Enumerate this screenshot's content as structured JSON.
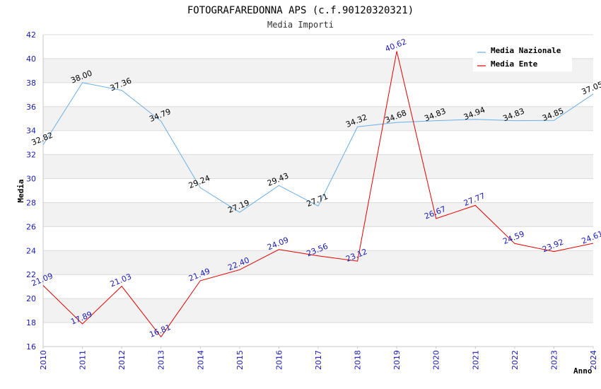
{
  "chart_data": {
    "type": "line",
    "title": "FOTOGRAFAREDONNA APS (c.f.90120320321)",
    "subtitle": "Media Importi",
    "xlabel": "Anno",
    "ylabel": "Media",
    "ylim": [
      16,
      42
    ],
    "yticks": [
      "16",
      "18",
      "20",
      "22",
      "24",
      "26",
      "28",
      "30",
      "32",
      "34",
      "36",
      "38",
      "40",
      "42"
    ],
    "categories": [
      "2010",
      "2011",
      "2012",
      "2013",
      "2014",
      "2015",
      "2016",
      "2017",
      "2018",
      "2019",
      "2020",
      "2021",
      "2022",
      "2023",
      "2024"
    ],
    "legend_position": "top-right",
    "series": [
      {
        "name": "Media Nazionale",
        "color": "#6aaee8",
        "label_color": "#000000",
        "values": [
          32.82,
          38.0,
          37.36,
          34.79,
          29.24,
          27.19,
          29.43,
          27.71,
          34.32,
          34.68,
          34.83,
          34.94,
          34.83,
          34.85,
          37.05
        ],
        "labels": [
          "32.82",
          "38.00",
          "37.36",
          "34.79",
          "29.24",
          "27.19",
          "29.43",
          "27.71",
          "34.32",
          "34.68",
          "34.83",
          "34.94",
          "34.83",
          "34.85",
          "37.05"
        ]
      },
      {
        "name": "Media Ente",
        "color": "#e00000",
        "label_color": "#1a1ab0",
        "values": [
          21.09,
          17.89,
          21.03,
          16.81,
          21.49,
          22.4,
          24.09,
          23.56,
          23.12,
          40.62,
          26.67,
          27.77,
          24.59,
          23.92,
          24.61
        ],
        "labels": [
          "21.09",
          "17.89",
          "21.03",
          "16.81",
          "21.49",
          "22.40",
          "24.09",
          "23.56",
          "23.12",
          "40.62",
          "26.67",
          "27.77",
          "24.59",
          "23.92",
          "24.61"
        ]
      }
    ]
  }
}
